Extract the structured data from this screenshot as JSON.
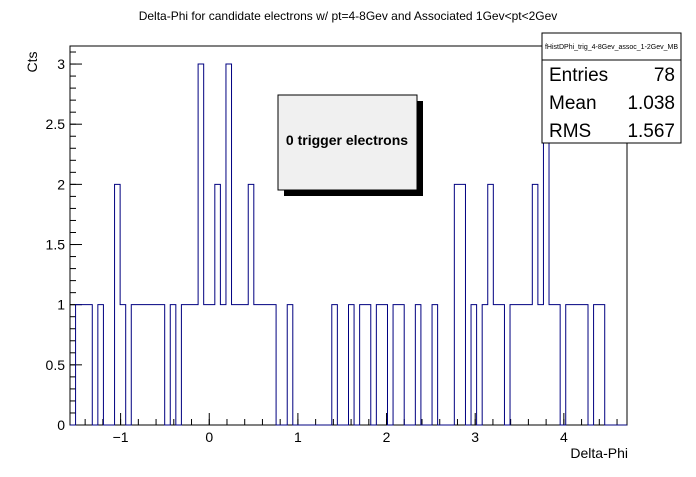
{
  "chart_data": {
    "type": "histogram",
    "title": "Delta-Phi for candidate electrons w/ pt=4-8Gev and Associated 1Gev<pt<2Gev",
    "xlabel": "Delta-Phi",
    "ylabel": "Cts",
    "xlim": [
      -1.5708,
      4.7124
    ],
    "ylim": [
      0,
      3.15
    ],
    "x_ticks": [
      -1,
      0,
      1,
      2,
      3,
      4
    ],
    "y_ticks": [
      0,
      0.5,
      1,
      1.5,
      2,
      2.5,
      3
    ],
    "x_tick_labels": [
      "−1",
      "0",
      "1",
      "2",
      "3",
      "4"
    ],
    "y_tick_labels": [
      "0",
      "0.5",
      "1",
      "1.5",
      "2",
      "2.5",
      "3"
    ],
    "bin_count": 100,
    "bin_width": 0.062832,
    "counts": [
      0,
      1,
      1,
      1,
      0,
      1,
      0,
      0,
      2,
      1,
      0,
      1,
      1,
      1,
      1,
      1,
      1,
      0,
      1,
      0,
      1,
      1,
      1,
      3,
      1,
      1,
      2,
      1,
      3,
      1,
      1,
      1,
      2,
      1,
      1,
      1,
      1,
      0,
      0,
      1,
      0,
      0,
      0,
      0,
      0,
      0,
      0,
      1,
      0,
      0,
      1,
      0,
      1,
      1,
      0,
      1,
      1,
      0,
      1,
      1,
      0,
      0,
      1,
      0,
      0,
      1,
      0,
      0,
      0,
      2,
      2,
      0,
      1,
      0,
      1,
      2,
      1,
      1,
      0,
      1,
      1,
      1,
      1,
      2,
      1,
      3,
      1,
      1,
      0,
      1,
      1,
      1,
      1,
      0,
      1,
      1,
      0,
      0,
      0,
      0
    ],
    "line_color": "#000080",
    "stats": {
      "name": "fHistDPhi_trig_4-8Gev_assoc_1-2Gev_MB",
      "entries_label": "Entries",
      "entries": "78",
      "mean_label": "Mean",
      "mean": "1.038",
      "rms_label": "RMS",
      "rms": "1.567"
    },
    "annotation": "0 trigger electrons",
    "legend": "top-right"
  }
}
